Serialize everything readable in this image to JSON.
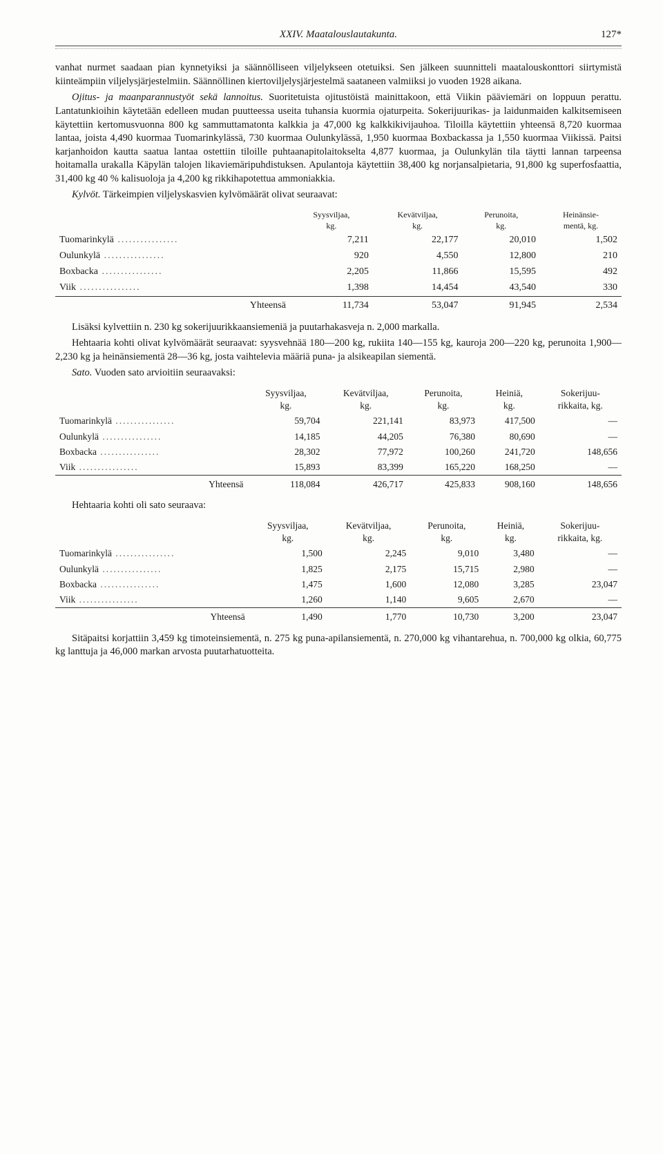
{
  "header": {
    "chapter": "XXIV.",
    "title": "Maatalouslautakunta.",
    "page": "127*"
  },
  "body": {
    "p1": "vanhat nurmet saadaan pian kynnetyiksi ja säännölliseen viljelykseen otetuiksi. Sen jälkeen suunnitteli maatalouskonttori siirtymistä kiinteämpiin viljelysjärjestelmiin. Säännöllinen kiertoviljelysjärjestelmä saataneen valmiiksi jo vuoden 1928 aikana.",
    "p2_label": "Ojitus- ja maanparannustyöt sekä lannoitus.",
    "p2": " Suoritetuista ojitustöistä mainittakoon, että Viikin pääviemäri on loppuun perattu. Lantatunkioihin käytetään edelleen mudan puutteessa useita tuhansia kuormia ojaturpeita. Sokerijuurikas- ja laidunmaiden kalkitsemiseen käytettiin kertomusvuonna 800 kg sammuttamatonta kalkkia ja 47,000 kg kalkkikivijauhoa. Tiloilla käytettiin yhteensä 8,720 kuormaa lantaa, joista 4,490 kuormaa Tuomarinkylässä, 730 kuormaa Oulunkylässä, 1,950 kuormaa Boxbackassa ja 1,550 kuormaa Viikissä. Paitsi karjanhoidon kautta saatua lantaa ostettiin tiloille puhtaanapitolaitokselta 4,877 kuormaa, ja Oulunkylän tila täytti lannan tarpeensa hoitamalla urakalla Käpylän talojen likaviemäripuhdistuksen. Apulantoja käytettiin 38,400 kg norjansalpietaria, 91,800 kg superfosfaattia, 31,400 kg 40 % kalisuoloja ja 4,200 kg rikkihapotettua ammoniakkia.",
    "p3_label": "Kylvöt.",
    "p3": " Tärkeimpien viljelyskasvien kylvömäärät olivat seuraavat:",
    "p4": "Lisäksi kylvettiin n. 230 kg sokerijuurikkaansiemeniä ja puutarhakasveja n. 2,000 markalla.",
    "p5": "Hehtaaria kohti olivat kylvömäärät seuraavat: syysvehnää 180—200 kg, rukiita 140—155 kg, kauroja 200—220 kg, perunoita 1,900—2,230 kg ja heinänsiementä 28—36 kg, josta vaihtelevia määriä puna- ja alsikeapilan siementä.",
    "p6_label": "Sato.",
    "p6": " Vuoden sato arvioitiin seuraavaksi:",
    "p7": "Hehtaaria kohti oli sato seuraava:",
    "p8": "Sitäpaitsi korjattiin 3,459 kg timoteinsiementä, n. 275 kg puna-apilansiementä, n. 270,000 kg vihantarehua, n. 700,000 kg olkia, 60,775 kg lanttuja ja 46,000 markan arvosta puutarhatuotteita."
  },
  "table1": {
    "columns": [
      "",
      "Syysviljaa,\nkg.",
      "Kevätviljaa,\nkg.",
      "Perunoita,\nkg.",
      "Heinänsie-\nmentä, kg."
    ],
    "rows": [
      [
        "Tuomarinkylä",
        "7,211",
        "22,177",
        "20,010",
        "1,502"
      ],
      [
        "Oulunkylä",
        "920",
        "4,550",
        "12,800",
        "210"
      ],
      [
        "Boxbacka",
        "2,205",
        "11,866",
        "15,595",
        "492"
      ],
      [
        "Viik",
        "1,398",
        "14,454",
        "43,540",
        "330"
      ]
    ],
    "total": [
      "Yhteensä",
      "11,734",
      "53,047",
      "91,945",
      "2,534"
    ]
  },
  "table2": {
    "columns": [
      "",
      "Syysviljaa,\nkg.",
      "Kevätviljaa,\nkg.",
      "Perunoita,\nkg.",
      "Heiniä,\nkg.",
      "Sokerijuu-\nrikkaita, kg."
    ],
    "rows": [
      [
        "Tuomarinkylä",
        "59,704",
        "221,141",
        "83,973",
        "417,500",
        "—"
      ],
      [
        "Oulunkylä",
        "14,185",
        "44,205",
        "76,380",
        "80,690",
        "—"
      ],
      [
        "Boxbacka",
        "28,302",
        "77,972",
        "100,260",
        "241,720",
        "148,656"
      ],
      [
        "Viik",
        "15,893",
        "83,399",
        "165,220",
        "168,250",
        "—"
      ]
    ],
    "total": [
      "Yhteensä",
      "118,084",
      "426,717",
      "425,833",
      "908,160",
      "148,656"
    ]
  },
  "table3": {
    "columns": [
      "",
      "Syysviljaa,\nkg.",
      "Kevätviljaa,\nkg.",
      "Perunoita,\nkg.",
      "Heiniä,\nkg.",
      "Sokerijuu-\nrikkaita, kg."
    ],
    "rows": [
      [
        "Tuomarinkylä",
        "1,500",
        "2,245",
        "9,010",
        "3,480",
        "—"
      ],
      [
        "Oulunkylä",
        "1,825",
        "2,175",
        "15,715",
        "2,980",
        "—"
      ],
      [
        "Boxbacka",
        "1,475",
        "1,600",
        "12,080",
        "3,285",
        "23,047"
      ],
      [
        "Viik",
        "1,260",
        "1,140",
        "9,605",
        "2,670",
        "—"
      ]
    ],
    "total": [
      "Yhteensä",
      "1,490",
      "1,770",
      "10,730",
      "3,200",
      "23,047"
    ]
  }
}
